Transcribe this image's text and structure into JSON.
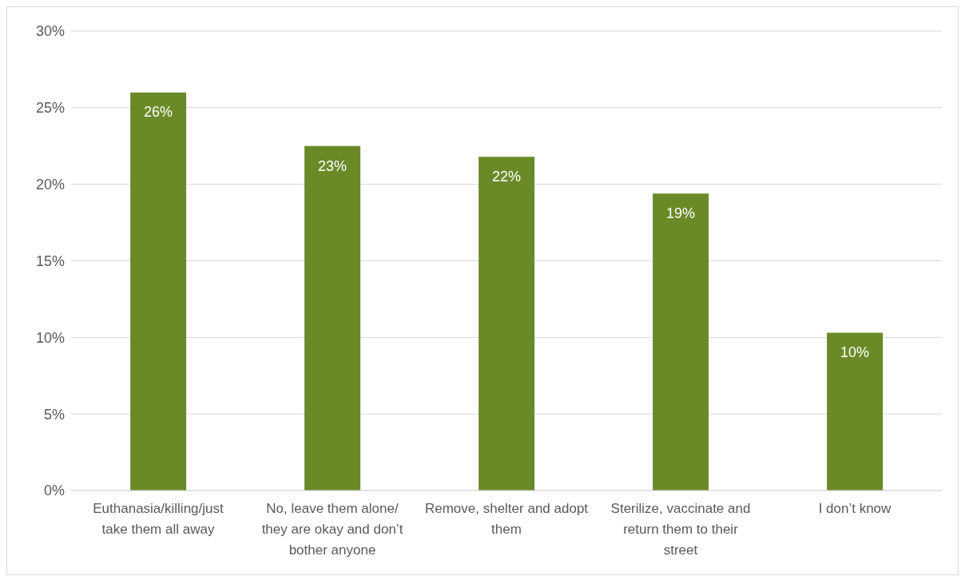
{
  "chart_data": {
    "type": "bar",
    "categories": [
      "Euthanasia/killing/just take them all away",
      "No, leave them alone/ they are okay and don’t bother anyone",
      "Remove, shelter and adopt them",
      "Sterilize, vaccinate and return them to their street",
      "I don’t know"
    ],
    "values": [
      26.0,
      22.5,
      21.8,
      19.4,
      10.3
    ],
    "value_labels": [
      "26%",
      "23%",
      "22%",
      "19%",
      "10%"
    ],
    "color": "#6a8a28",
    "ylim": [
      0,
      30
    ],
    "yticks": [
      {
        "value": 0,
        "label": "0%"
      },
      {
        "value": 5,
        "label": "5%"
      },
      {
        "value": 10,
        "label": "10%"
      },
      {
        "value": 15,
        "label": "15%"
      },
      {
        "value": 20,
        "label": "20%"
      },
      {
        "value": 25,
        "label": "25%"
      },
      {
        "value": 30,
        "label": "30%"
      }
    ],
    "grid": "y",
    "legend": false
  }
}
